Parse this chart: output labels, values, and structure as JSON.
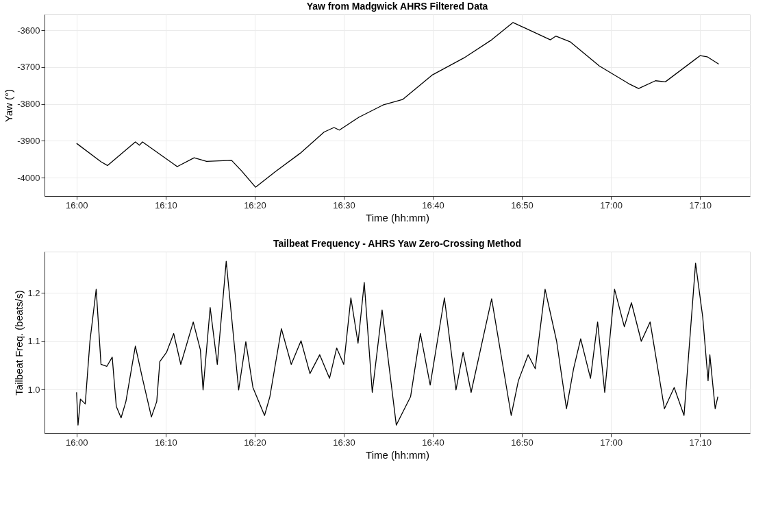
{
  "chart_data": [
    {
      "type": "line",
      "title": "Yaw from Madgwick AHRS Filtered Data",
      "xlabel": "Time (hh:mm)",
      "ylabel": "Yaw (°)",
      "grid": true,
      "marker": "none",
      "line_style": "solid",
      "xlim": [
        15.94,
        17.26
      ],
      "ylim": [
        -4050,
        -3557
      ],
      "xticks": [
        {
          "value": 16,
          "label": "16:00"
        },
        {
          "value": 16.1667,
          "label": "16:10"
        },
        {
          "value": 16.3333,
          "label": "16:20"
        },
        {
          "value": 16.5,
          "label": "16:30"
        },
        {
          "value": 16.6667,
          "label": "16:40"
        },
        {
          "value": 16.8333,
          "label": "16:50"
        },
        {
          "value": 17,
          "label": "17:00"
        },
        {
          "value": 17.1667,
          "label": "17:10"
        }
      ],
      "yticks": [
        -4000,
        -3900,
        -3800,
        -3700,
        -3600
      ],
      "series": [
        {
          "color": "#000000",
          "x": [
            16.0,
            16.0458,
            16.0578,
            16.11,
            16.1175,
            16.1233,
            16.1883,
            16.22,
            16.2433,
            16.29,
            16.3083,
            16.335,
            16.3717,
            16.4183,
            16.4633,
            16.4817,
            16.4917,
            16.5283,
            16.5733,
            16.61,
            16.665,
            16.725,
            16.7767,
            16.8167,
            16.8867,
            16.8967,
            16.9233,
            16.9783,
            17.0333,
            17.0517,
            17.0833,
            17.1017,
            17.1667,
            17.18,
            17.2017
          ],
          "values": [
            -3907,
            -3957,
            -3967,
            -3903,
            -3912,
            -3903,
            -3970,
            -3946,
            -3956,
            -3953,
            -3981,
            -4026,
            -3984,
            -3934,
            -3876,
            -3864,
            -3871,
            -3836,
            -3803,
            -3788,
            -3722,
            -3675,
            -3626,
            -3579,
            -3626,
            -3616,
            -3631,
            -3697,
            -3745,
            -3758,
            -3737,
            -3740,
            -3669,
            -3672,
            -3692
          ]
        }
      ]
    },
    {
      "type": "line",
      "title": "Tailbeat Frequency - AHRS Yaw Zero-Crossing Method",
      "xlabel": "Time (hh:mm)",
      "ylabel": "Tailbeat Freq. (beats/s)",
      "grid": true,
      "marker": "none",
      "line_style": "solid",
      "xlim": [
        15.94,
        17.26
      ],
      "ylim": [
        0.909,
        1.286
      ],
      "xticks": [
        {
          "value": 16,
          "label": "16:00"
        },
        {
          "value": 16.1667,
          "label": "16:10"
        },
        {
          "value": 16.3333,
          "label": "16:20"
        },
        {
          "value": 16.5,
          "label": "16:30"
        },
        {
          "value": 16.6667,
          "label": "16:40"
        },
        {
          "value": 16.8333,
          "label": "16:50"
        },
        {
          "value": 17,
          "label": "17:00"
        },
        {
          "value": 17.1667,
          "label": "17:10"
        }
      ],
      "yticks": [
        {
          "value": 1.0,
          "label": "1.0"
        },
        {
          "value": 1.1,
          "label": "1.1"
        },
        {
          "value": 1.2,
          "label": "1.2"
        }
      ],
      "series": [
        {
          "color": "#000000",
          "x": [
            16.0,
            16.0027,
            16.0072,
            16.0162,
            16.025,
            16.0367,
            16.0457,
            16.0567,
            16.0667,
            16.0743,
            16.0833,
            16.0923,
            16.11,
            16.1233,
            16.14,
            16.15,
            16.1558,
            16.1683,
            16.1817,
            16.195,
            16.2183,
            16.2317,
            16.2367,
            16.25,
            16.2633,
            16.28,
            16.3033,
            16.3167,
            16.33,
            16.3517,
            16.3617,
            16.3833,
            16.4017,
            16.42,
            16.4367,
            16.455,
            16.4733,
            16.4867,
            16.5,
            16.5133,
            16.5267,
            16.5383,
            16.5533,
            16.5717,
            16.5983,
            16.625,
            16.6433,
            16.6617,
            16.6883,
            16.71,
            16.7233,
            16.7383,
            16.7767,
            16.8133,
            16.8267,
            16.845,
            16.8583,
            16.8767,
            16.8983,
            16.9167,
            16.93,
            16.9433,
            16.9617,
            16.975,
            16.9883,
            17.0067,
            17.025,
            17.0383,
            17.0567,
            17.0733,
            17.1,
            17.1183,
            17.1367,
            17.1583,
            17.1717,
            17.1817,
            17.185,
            17.195,
            17.2
          ],
          "values": [
            0.994,
            0.926,
            0.98,
            0.97,
            1.1,
            1.208,
            1.052,
            1.048,
            1.067,
            0.965,
            0.941,
            0.975,
            1.09,
            1.023,
            0.943,
            0.975,
            1.058,
            1.077,
            1.116,
            1.052,
            1.14,
            1.082,
            0.999,
            1.17,
            1.052,
            1.266,
            0.999,
            1.099,
            1.004,
            0.946,
            0.985,
            1.126,
            1.052,
            1.101,
            1.033,
            1.072,
            1.023,
            1.086,
            1.052,
            1.19,
            1.096,
            1.222,
            0.994,
            1.165,
            0.926,
            0.985,
            1.116,
            1.009,
            1.19,
            0.999,
            1.077,
            0.994,
            1.188,
            0.946,
            1.018,
            1.072,
            1.043,
            1.208,
            1.1,
            0.96,
            1.043,
            1.105,
            1.023,
            1.14,
            0.994,
            1.208,
            1.13,
            1.18,
            1.1,
            1.14,
            0.96,
            1.004,
            0.946,
            1.262,
            1.15,
            1.018,
            1.072,
            0.96,
            0.985
          ]
        }
      ]
    }
  ]
}
